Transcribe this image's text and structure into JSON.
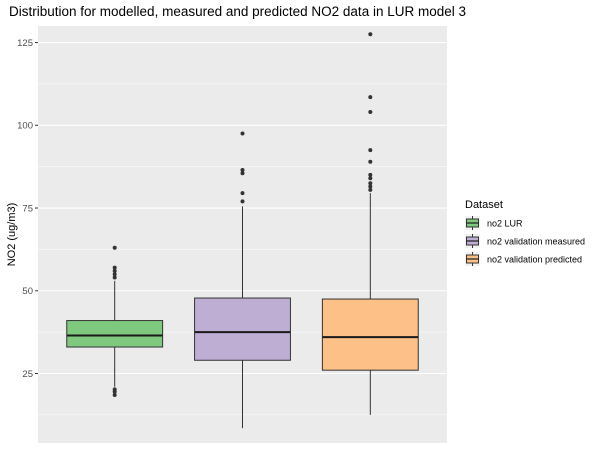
{
  "chart_data": {
    "type": "boxplot",
    "title": "Distribution for modelled, measured and predicted NO2 data in LUR model 3",
    "xlabel": "",
    "ylabel": "NO2 (ug/m3)",
    "ylim": [
      4,
      130
    ],
    "yticks": [
      25,
      50,
      75,
      100,
      125
    ],
    "grid": true,
    "legend": {
      "title": "Dataset",
      "position": "right"
    },
    "series": [
      {
        "name": "no2 LUR",
        "color": "#7fc97f",
        "whisker_low": 21,
        "q1": 33,
        "median": 36.5,
        "q3": 41,
        "whisker_high": 53,
        "outliers": [
          18.5,
          19.5,
          20.2,
          54,
          55,
          56,
          57,
          63
        ]
      },
      {
        "name": "no2 validation measured",
        "color": "#beaed4",
        "whisker_low": 8.5,
        "q1": 29,
        "median": 37.5,
        "q3": 47.8,
        "whisker_high": 75.5,
        "outliers": [
          77,
          79.5,
          85.5,
          86.5,
          97.5
        ]
      },
      {
        "name": "no2 validation predicted",
        "color": "#fdc086",
        "whisker_low": 12.5,
        "q1": 26,
        "median": 36,
        "q3": 47.5,
        "whisker_high": 79.5,
        "outliers": [
          80.5,
          81.5,
          82.5,
          84,
          85,
          89,
          92.5,
          104,
          108.5,
          127.5
        ]
      }
    ]
  }
}
